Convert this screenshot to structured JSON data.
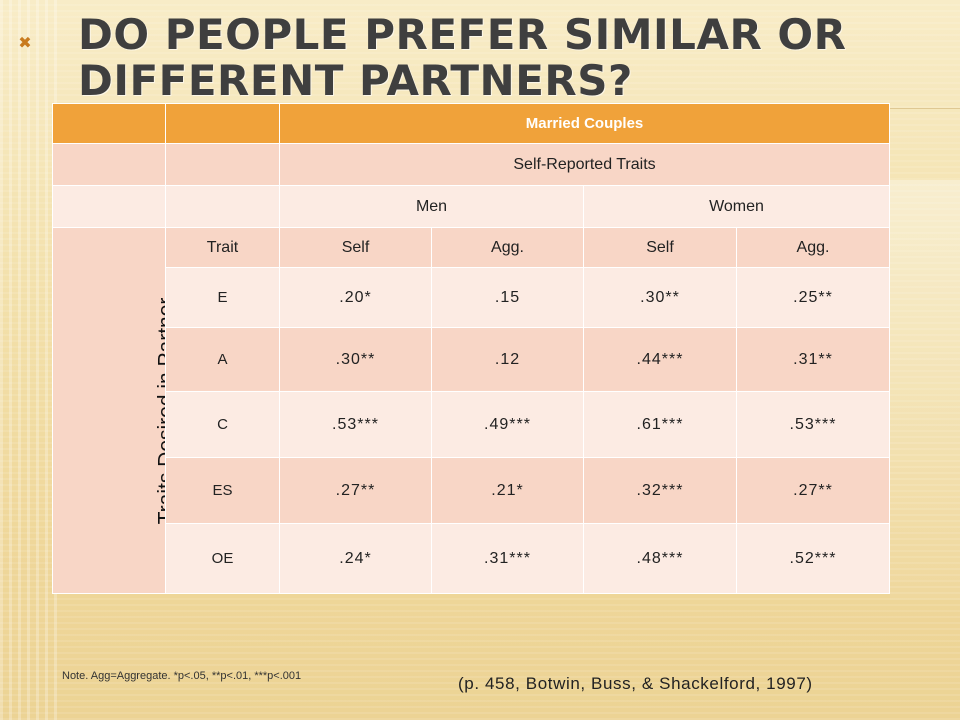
{
  "slide": {
    "title": "Do people prefer similar or different partners?",
    "bullet": "✖"
  },
  "table": {
    "header": "Married Couples",
    "subheader": "Self-Reported Traits",
    "groups": [
      "Men",
      "Women"
    ],
    "side_label": "Traits Desired in Partner",
    "trait_col": "Trait",
    "columns": [
      "Self",
      "Agg.",
      "Self",
      "Agg."
    ],
    "rows": [
      {
        "trait": "E",
        "values": [
          ".20*",
          ".15",
          ".30**",
          ".25**"
        ]
      },
      {
        "trait": "A",
        "values": [
          ".30**",
          ".12",
          ".44***",
          ".31**"
        ]
      },
      {
        "trait": "C",
        "values": [
          ".53***",
          ".49***",
          ".61***",
          ".53***"
        ]
      },
      {
        "trait": "ES",
        "values": [
          ".27**",
          ".21*",
          ".32***",
          ".27**"
        ]
      },
      {
        "trait": "OE",
        "values": [
          ".24*",
          ".31***",
          ".48***",
          ".52***"
        ]
      }
    ]
  },
  "note": "Note. Agg=Aggregate. *p<.05, **p<.01, ***p<.001",
  "citation": "(p. 458, Botwin, Buss, & Shackelford, 1997)",
  "colors": {
    "header_orange": "#f0a23a",
    "row_dark": "#f8d6c6",
    "row_light": "#fcebe3",
    "title_gray": "#3f3f3f"
  }
}
